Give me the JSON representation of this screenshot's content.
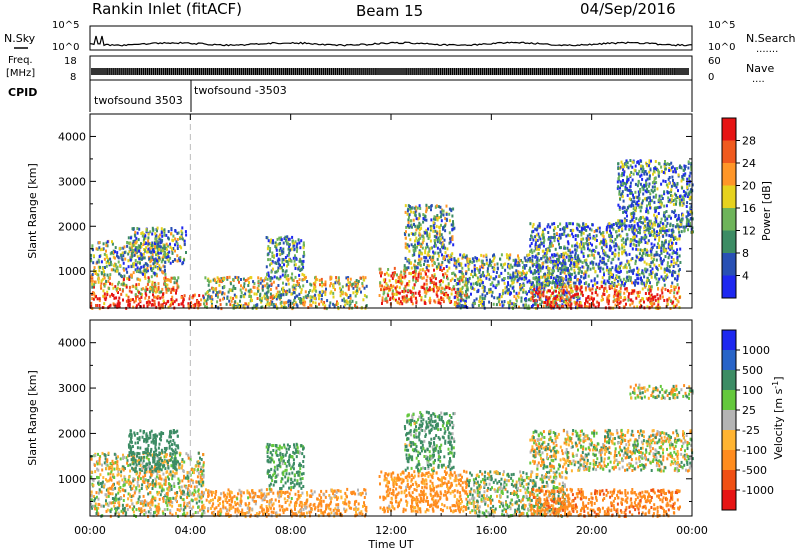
{
  "header": {
    "station": "Rankin Inlet (fitACF)",
    "beam": "Beam 15",
    "date": "04/Sep/2016"
  },
  "noise_panel": {
    "left_label": "N.Sky",
    "right_label": "N.Search",
    "left_ticks": [
      "10^5",
      "10^0"
    ],
    "right_ticks": [
      "10^5",
      "10^0"
    ]
  },
  "freq_panel": {
    "left_label_line1": "Freq.",
    "left_label_line2": "[MHz]",
    "left_ticks": [
      "18",
      "8"
    ],
    "right_label": "Nave",
    "right_ticks": [
      "60",
      "0"
    ]
  },
  "cpid_panel": {
    "label": "CPID",
    "modes": [
      {
        "name": "twofsound 3503",
        "start_hour": 0.0
      },
      {
        "name": "twofsound -3503",
        "start_hour": 4.0
      }
    ]
  },
  "x_axis": {
    "label": "Time UT",
    "tick_labels": [
      "00:00",
      "04:00",
      "08:00",
      "12:00",
      "16:00",
      "20:00",
      "00:00"
    ],
    "range_hours": [
      0,
      24
    ]
  },
  "chart_data": [
    {
      "type": "heatmap",
      "parameter": "power",
      "ylabel": "Slant Range [km]",
      "yticks": [
        1000,
        2000,
        3000,
        4000
      ],
      "ylim": [
        180,
        4500
      ],
      "colorbar": {
        "label": "Power [dB]",
        "ticks": [
          "4",
          "8",
          "12",
          "16",
          "20",
          "24",
          "28"
        ],
        "range": [
          0,
          30
        ],
        "colors": [
          "#1e28f0",
          "#2850b4",
          "#3c8c64",
          "#6eb45a",
          "#e6d21e",
          "#ff9628",
          "#f05a1e",
          "#e61414"
        ]
      },
      "scatter_regions": [
        {
          "t0": 0.0,
          "t1": 4.5,
          "r0": 200,
          "r1": 500,
          "value": 28
        },
        {
          "t0": 0.0,
          "t1": 3.5,
          "r0": 500,
          "r1": 900,
          "value": 20
        },
        {
          "t0": 0.0,
          "t1": 3.0,
          "r0": 900,
          "r1": 1700,
          "value": 12
        },
        {
          "t0": 1.5,
          "t1": 3.8,
          "r0": 1200,
          "r1": 2000,
          "value": 10
        },
        {
          "t0": 4.5,
          "t1": 11.0,
          "r0": 200,
          "r1": 900,
          "value": 14
        },
        {
          "t0": 7.0,
          "t1": 8.5,
          "r0": 900,
          "r1": 1800,
          "value": 8
        },
        {
          "t0": 11.5,
          "t1": 15.0,
          "r0": 300,
          "r1": 1100,
          "value": 22
        },
        {
          "t0": 12.5,
          "t1": 14.5,
          "r0": 1100,
          "r1": 2500,
          "value": 12
        },
        {
          "t0": 14.5,
          "t1": 19.5,
          "r0": 200,
          "r1": 1400,
          "value": 10
        },
        {
          "t0": 17.5,
          "t1": 23.5,
          "r0": 200,
          "r1": 700,
          "value": 24
        },
        {
          "t0": 17.5,
          "t1": 23.5,
          "r0": 700,
          "r1": 2100,
          "value": 9
        },
        {
          "t0": 21.0,
          "t1": 24.0,
          "r0": 1900,
          "r1": 3500,
          "value": 8
        }
      ]
    },
    {
      "type": "heatmap",
      "parameter": "velocity",
      "ylabel": "Slant Range [km]",
      "yticks": [
        1000,
        2000,
        3000,
        4000
      ],
      "ylim": [
        180,
        4500
      ],
      "colorbar": {
        "label": "Velocity [m s^-1]",
        "ticks": [
          "1000",
          "500",
          "100",
          "25",
          "-25",
          "-100",
          "-500",
          "-1000"
        ],
        "colors": [
          "#1e28f0",
          "#2864c8",
          "#3c8c64",
          "#64c83c",
          "#b4b4b4",
          "#ffb432",
          "#ff8c1e",
          "#f05014",
          "#e61414"
        ]
      },
      "scatter_regions": [
        {
          "t0": 0.0,
          "t1": 4.5,
          "r0": 200,
          "r1": 1600,
          "value": 0
        },
        {
          "t0": 1.5,
          "t1": 3.5,
          "r0": 1200,
          "r1": 2100,
          "value": 300
        },
        {
          "t0": 4.5,
          "t1": 11.0,
          "r0": 200,
          "r1": 800,
          "value": -150
        },
        {
          "t0": 7.0,
          "t1": 8.5,
          "r0": 800,
          "r1": 1800,
          "value": 200
        },
        {
          "t0": 11.5,
          "t1": 15.0,
          "r0": 300,
          "r1": 1200,
          "value": -200
        },
        {
          "t0": 12.5,
          "t1": 14.5,
          "r0": 1200,
          "r1": 2500,
          "value": 150
        },
        {
          "t0": 15.0,
          "t1": 19.0,
          "r0": 200,
          "r1": 1200,
          "value": 60
        },
        {
          "t0": 17.5,
          "t1": 23.5,
          "r0": 200,
          "r1": 800,
          "value": -400
        },
        {
          "t0": 17.5,
          "t1": 24.0,
          "r0": 1200,
          "r1": 2100,
          "value": 0
        },
        {
          "t0": 21.5,
          "t1": 24.0,
          "r0": 2800,
          "r1": 3100,
          "value": 0
        }
      ]
    }
  ]
}
